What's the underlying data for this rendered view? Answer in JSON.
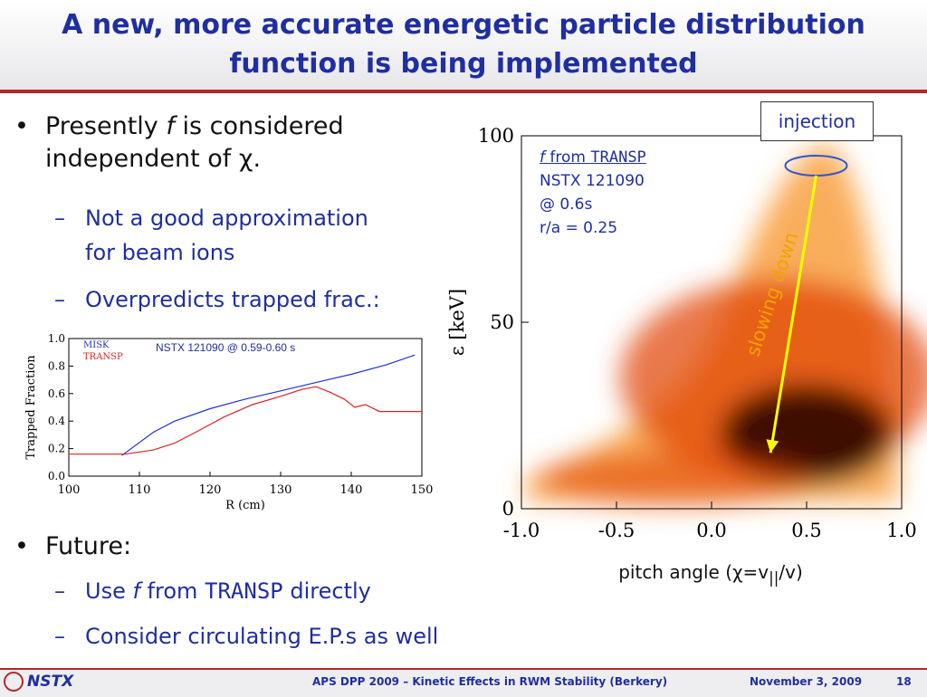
{
  "slide": {
    "title_line1": "A new, more accurate energetic particle distribution",
    "title_line2": "function is being implemented"
  },
  "bullets": {
    "b1_pre": "Presently ",
    "b1_f": "f",
    "b1_post": " is considered",
    "b1_line2": "independent of χ.",
    "s1_line1": "Not a good approximation",
    "s1_line2": "for beam ions",
    "s2": "Overpredicts trapped frac.:",
    "b2": "Future:",
    "s3_pre": "Use ",
    "s3_f": "f",
    "s3_mid": "  from ",
    "s3_code": "TRANSP",
    "s3_post": " directly",
    "s4": "Consider circulating E.P.s as well"
  },
  "left_chart": {
    "chart_data": {
      "type": "line",
      "title": "NSTX 121090 @ 0.59-0.60 s",
      "xlabel": "R (cm)",
      "ylabel": "Trapped Fraction",
      "xlim": [
        100,
        150
      ],
      "ylim": [
        0,
        1.0
      ],
      "xticks": [
        100,
        110,
        120,
        130,
        140,
        150
      ],
      "yticks": [
        0.0,
        0.2,
        0.4,
        0.6,
        0.8,
        1.0
      ],
      "xtick_labels": [
        "100",
        "110",
        "120",
        "130",
        "140",
        "150"
      ],
      "ytick_labels": [
        "0.0",
        "0.2",
        "0.4",
        "0.6",
        "0.8",
        "1.0"
      ],
      "series": [
        {
          "name": "MISK",
          "color": "#2233cc",
          "x": [
            107.5,
            112,
            115,
            120,
            125,
            130,
            135,
            140,
            145,
            149
          ],
          "y": [
            0.15,
            0.32,
            0.4,
            0.49,
            0.56,
            0.62,
            0.68,
            0.74,
            0.81,
            0.88
          ]
        },
        {
          "name": "TRANSP",
          "color": "#dd2222",
          "x": [
            100,
            108,
            112,
            115,
            118,
            122,
            126,
            130,
            133,
            135,
            137,
            139,
            140.5,
            142,
            144,
            146,
            150
          ],
          "y": [
            0.16,
            0.16,
            0.19,
            0.24,
            0.32,
            0.43,
            0.52,
            0.58,
            0.63,
            0.65,
            0.61,
            0.56,
            0.5,
            0.52,
            0.47,
            0.47,
            0.47
          ]
        }
      ]
    }
  },
  "right_chart": {
    "chart_data": {
      "type": "heatmap",
      "xlabel": "pitch angle (χ=v||/v)",
      "ylabel": "ε [keV]",
      "xlim": [
        -1.0,
        1.0
      ],
      "ylim": [
        0,
        100
      ],
      "xtick_labels": [
        "-1.0",
        "-0.5",
        "0.0",
        "0.5",
        "1.0"
      ],
      "ytick_labels": [
        "0",
        "50",
        "100"
      ],
      "xticks": [
        -1.0,
        -0.5,
        0.0,
        0.5,
        1.0
      ],
      "yticks": [
        0,
        50,
        100
      ],
      "colormap": [
        "#ffffff",
        "#f8a040",
        "#e04000",
        "#200000"
      ],
      "peak": {
        "x": 0.5,
        "y": 20
      },
      "injection_point": {
        "x": 0.55,
        "y": 92
      }
    },
    "ylabel_text": "ε  [keV]",
    "xlabel_pre": "pitch angle (χ=v",
    "xlabel_sub": "||",
    "xlabel_post": "/v)",
    "info_f": "f",
    "info_from": "  from ",
    "info_code": "TRANSP",
    "info_line2": "NSTX 121090",
    "info_line3": "@ 0.6s",
    "info_line4": "r/a = 0.25",
    "injection_label": "injection",
    "slowing_label": "slowing down",
    "arrow_color": "#ffff00"
  },
  "footer": {
    "logo": "NSTX",
    "conference": "APS DPP 2009 – Kinetic Effects in RWM Stability (Berkery)",
    "date": "November 3, 2009",
    "page": "18"
  },
  "colors": {
    "title_blue": "#1f2ea0",
    "accent_red": "#b3272a"
  }
}
